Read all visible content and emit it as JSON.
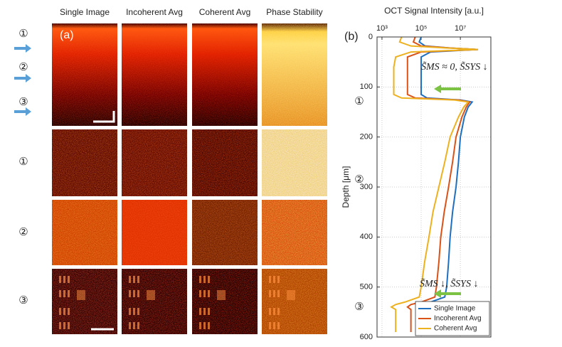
{
  "panel_a": {
    "label": "(a)",
    "columns": [
      "Single Image",
      "Incoherent Avg",
      "Coherent Avg",
      "Phase Stability"
    ],
    "rows": [
      "①",
      "②",
      "③"
    ],
    "markers": [
      "①",
      "②",
      "③"
    ]
  },
  "chart_data": {
    "type": "line",
    "label": "(b)",
    "title": "OCT Signal Intensity [a.u.]",
    "ylabel": "Depth [μm]",
    "log_x": true,
    "grid": true,
    "legend": "lower right",
    "y": [
      0,
      10,
      18,
      22,
      25,
      30,
      40,
      60,
      100,
      115,
      122,
      126,
      130,
      140,
      160,
      200,
      250,
      300,
      350,
      400,
      450,
      500,
      520,
      530,
      535,
      540,
      545,
      560,
      590
    ],
    "series": [
      {
        "name": "Single Image",
        "color": "#1f6fc0",
        "values": [
          100000.0,
          80000.0,
          160000.0,
          3000000.0,
          80000000.0,
          300000.0,
          100000.0,
          100000.0,
          100000.0,
          100000.0,
          200000.0,
          10000000.0,
          40000000.0,
          25000000.0,
          16000000.0,
          10000000.0,
          8000000.0,
          6000000.0,
          4000000.0,
          3000000.0,
          2500000.0,
          2000000.0,
          1600000.0,
          300000.0,
          100000.0,
          80000.0,
          100000.0,
          100000.0,
          100000.0
        ]
      },
      {
        "name": "Incoherent Avg",
        "color": "#d95319",
        "values": [
          50000.0,
          40000.0,
          100000.0,
          3000000.0,
          80000000.0,
          100000.0,
          20000.0,
          20000.0,
          20000.0,
          20000.0,
          50000.0,
          8000000.0,
          30000000.0,
          20000000.0,
          12000000.0,
          6000000.0,
          4000000.0,
          2500000.0,
          1500000.0,
          1000000.0,
          800000.0,
          600000.0,
          500000.0,
          100000.0,
          30000.0,
          20000.0,
          30000.0,
          30000.0,
          30000.0
        ]
      },
      {
        "name": "Coherent Avg",
        "color": "#edb120",
        "values": [
          10000.0,
          8000.0,
          30000.0,
          2000000.0,
          80000000.0,
          30000.0,
          5000.0,
          4000.0,
          4000.0,
          4000.0,
          10000.0,
          5000000.0,
          25000000.0,
          15000000.0,
          8000000.0,
          3000000.0,
          1600000.0,
          800000.0,
          400000.0,
          250000.0,
          150000.0,
          100000.0,
          80000.0,
          15000.0,
          5000.0,
          3000.0,
          5000.0,
          5000.0,
          5000.0
        ]
      }
    ],
    "xlim": [
      560,
      360000000.0
    ],
    "xticks": [
      {
        "value": 1000,
        "label": "10³"
      },
      {
        "value": 100000,
        "label": "10⁵"
      },
      {
        "value": 10000000,
        "label": "10⁷"
      }
    ],
    "ylim": [
      0,
      600
    ],
    "yticks": [
      0,
      100,
      200,
      300,
      400,
      500,
      600
    ],
    "markers": [
      "①",
      "②",
      "③"
    ],
    "annotations": [
      "S̃MS ≈ 0, S̃SYS ↓",
      "S̃MS ↓, S̃SYS ↓"
    ]
  }
}
